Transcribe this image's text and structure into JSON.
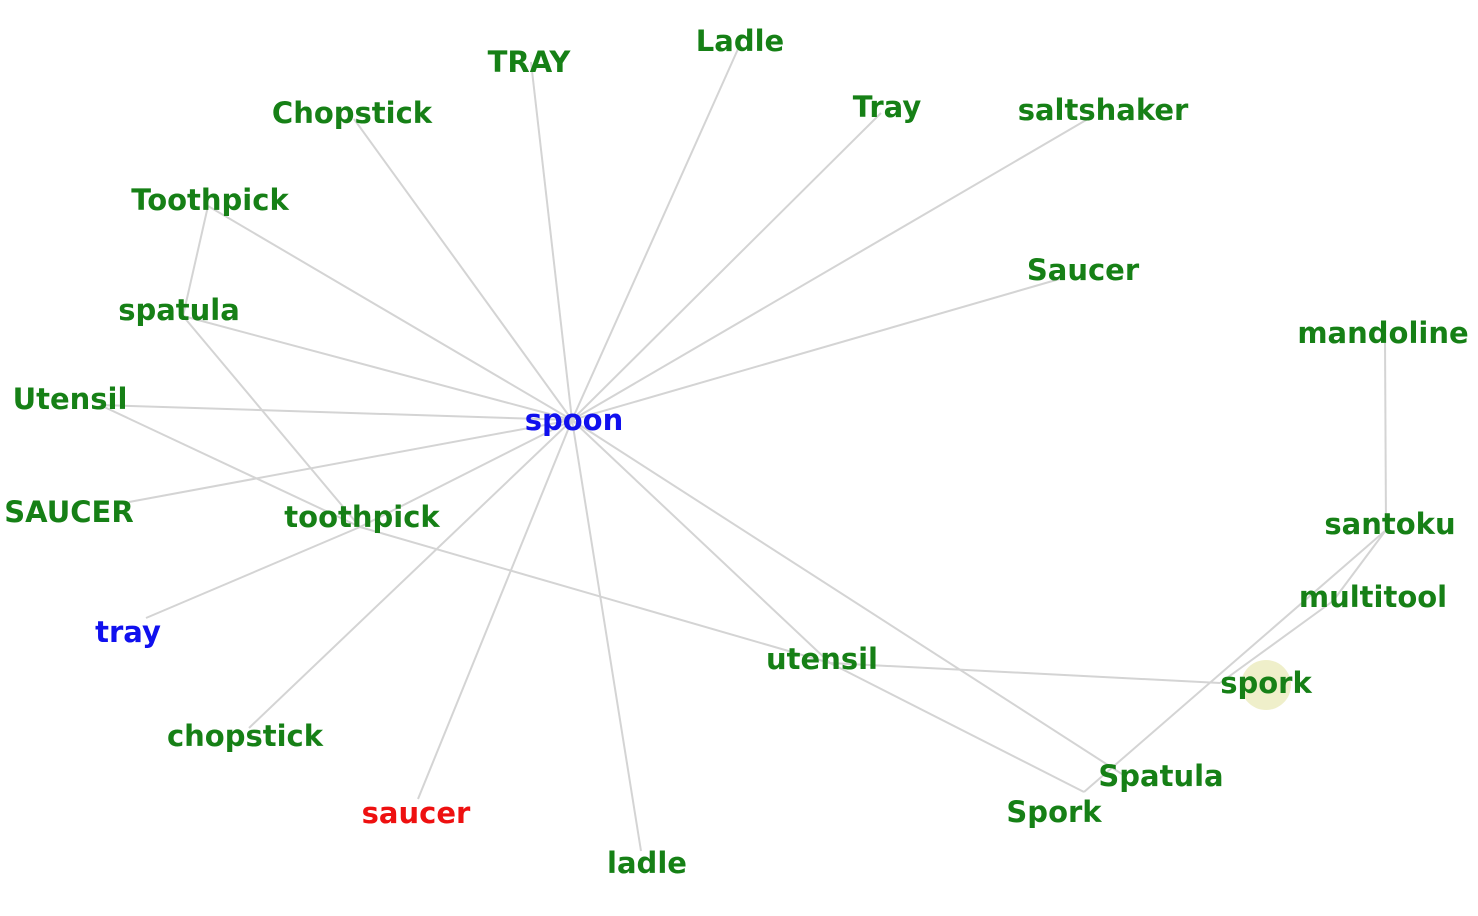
{
  "colors": {
    "green": "#168016",
    "blue": "#1010ee",
    "red": "#ee1010",
    "edge": "#d4d4d4",
    "highlight": "#e9e9b8"
  },
  "nodes": [
    {
      "id": "spoon",
      "label": "spoon",
      "color": "blue"
    },
    {
      "id": "TRAY",
      "label": "TRAY",
      "color": "green"
    },
    {
      "id": "Ladle",
      "label": "Ladle",
      "color": "green"
    },
    {
      "id": "Chopstick",
      "label": "Chopstick",
      "color": "green"
    },
    {
      "id": "Tray",
      "label": "Tray",
      "color": "green"
    },
    {
      "id": "saltshaker",
      "label": "saltshaker",
      "color": "green"
    },
    {
      "id": "Toothpick",
      "label": "Toothpick",
      "color": "green"
    },
    {
      "id": "Saucer",
      "label": "Saucer",
      "color": "green"
    },
    {
      "id": "spatula",
      "label": "spatula",
      "color": "green"
    },
    {
      "id": "mandoline",
      "label": "mandoline",
      "color": "green"
    },
    {
      "id": "Utensil",
      "label": "Utensil",
      "color": "green"
    },
    {
      "id": "SAUCER",
      "label": "SAUCER",
      "color": "green"
    },
    {
      "id": "toothpick",
      "label": "toothpick",
      "color": "green"
    },
    {
      "id": "santoku",
      "label": "santoku",
      "color": "green"
    },
    {
      "id": "multitool",
      "label": "multitool",
      "color": "green"
    },
    {
      "id": "tray",
      "label": "tray",
      "color": "blue"
    },
    {
      "id": "utensil",
      "label": "utensil",
      "color": "green"
    },
    {
      "id": "spork",
      "label": "spork",
      "color": "green",
      "highlighted": true
    },
    {
      "id": "chopstick",
      "label": "chopstick",
      "color": "green"
    },
    {
      "id": "Spatula",
      "label": "Spatula",
      "color": "green"
    },
    {
      "id": "saucer",
      "label": "saucer",
      "color": "red"
    },
    {
      "id": "Spork",
      "label": "Spork",
      "color": "green"
    },
    {
      "id": "ladle",
      "label": "ladle",
      "color": "green"
    }
  ],
  "edges": [
    [
      "spoon",
      "TRAY"
    ],
    [
      "spoon",
      "Ladle"
    ],
    [
      "spoon",
      "Chopstick"
    ],
    [
      "spoon",
      "Tray"
    ],
    [
      "spoon",
      "saltshaker"
    ],
    [
      "spoon",
      "Toothpick"
    ],
    [
      "spoon",
      "Saucer"
    ],
    [
      "spoon",
      "spatula"
    ],
    [
      "spoon",
      "Utensil"
    ],
    [
      "spoon",
      "SAUCER"
    ],
    [
      "spoon",
      "toothpick"
    ],
    [
      "spoon",
      "utensil"
    ],
    [
      "spoon",
      "chopstick"
    ],
    [
      "spoon",
      "saucer"
    ],
    [
      "spoon",
      "ladle"
    ],
    [
      "spoon",
      "Spatula"
    ],
    [
      "Toothpick",
      "spatula"
    ],
    [
      "spatula",
      "toothpick"
    ],
    [
      "Utensil",
      "toothpick"
    ],
    [
      "toothpick",
      "tray"
    ],
    [
      "toothpick",
      "utensil"
    ],
    [
      "utensil",
      "spork"
    ],
    [
      "utensil",
      "Spork"
    ],
    [
      "Spork",
      "santoku"
    ],
    [
      "santoku",
      "mandoline"
    ],
    [
      "santoku",
      "multitool"
    ],
    [
      "multitool",
      "spork"
    ]
  ]
}
